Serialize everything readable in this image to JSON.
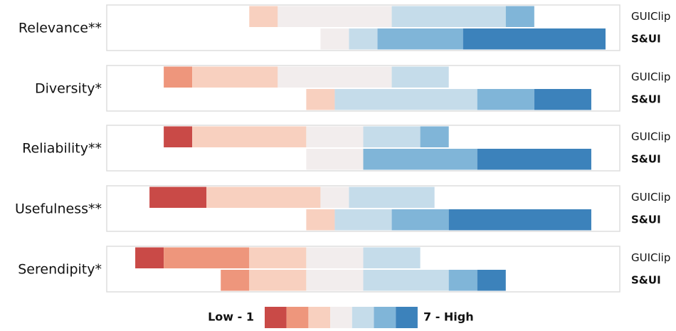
{
  "chart_data": {
    "type": "diverging_stacked_bar",
    "categories": [
      "Relevance**",
      "Diversity*",
      "Reliability**",
      "Usefulness**",
      "Serendipity*"
    ],
    "groups": [
      "GUIClip",
      "S&UI"
    ],
    "neutral_index": 3,
    "xlim": [
      -8,
      10
    ],
    "series": [
      {
        "color": "#c94a47",
        "values": [
          [
            0,
            0
          ],
          [
            0,
            0
          ],
          [
            1,
            0
          ],
          [
            2,
            0
          ],
          [
            1,
            0
          ]
        ]
      },
      {
        "color": "#ee967c",
        "values": [
          [
            0,
            0
          ],
          [
            1,
            0
          ],
          [
            0,
            0
          ],
          [
            0,
            0
          ],
          [
            3,
            1
          ]
        ]
      },
      {
        "color": "#f8d0bf",
        "values": [
          [
            1,
            0
          ],
          [
            3,
            1
          ],
          [
            4,
            0
          ],
          [
            4,
            1
          ],
          [
            2,
            2
          ]
        ]
      },
      {
        "color": "#f2eded",
        "values": [
          [
            4,
            1
          ],
          [
            4,
            0
          ],
          [
            2,
            2
          ],
          [
            1,
            0
          ],
          [
            2,
            2
          ]
        ]
      },
      {
        "color": "#c5dcea",
        "values": [
          [
            4,
            1
          ],
          [
            2,
            5
          ],
          [
            2,
            0
          ],
          [
            3,
            2
          ],
          [
            2,
            3
          ]
        ]
      },
      {
        "color": "#80b5d8",
        "values": [
          [
            1,
            3
          ],
          [
            0,
            2
          ],
          [
            1,
            4
          ],
          [
            0,
            2
          ],
          [
            0,
            1
          ]
        ]
      },
      {
        "color": "#3c82bb",
        "values": [
          [
            0,
            5
          ],
          [
            0,
            2
          ],
          [
            0,
            4
          ],
          [
            0,
            5
          ],
          [
            0,
            1
          ]
        ]
      }
    ],
    "legend_low": "Low - 1",
    "legend_high": "7 - High"
  }
}
